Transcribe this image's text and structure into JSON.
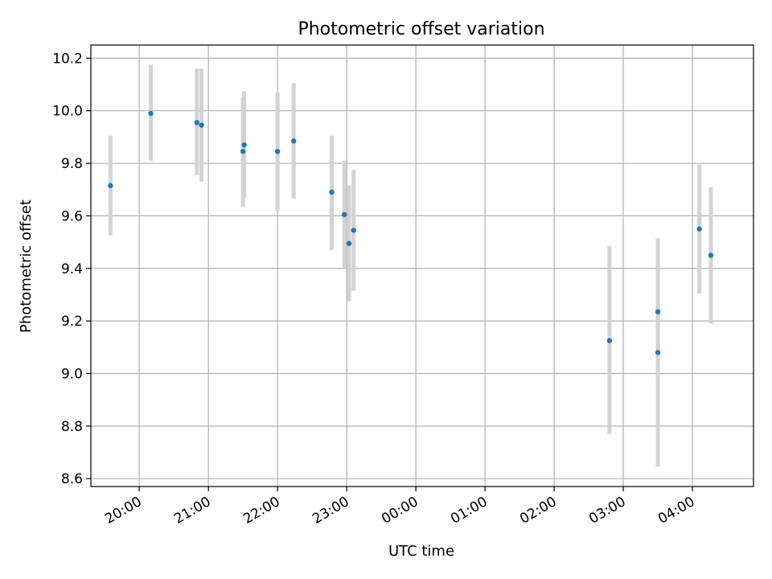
{
  "chart_data": {
    "type": "scatter",
    "title": "Photometric offset variation",
    "xlabel": "UTC time",
    "ylabel": "Photometric offset",
    "x_axis_kind": "time",
    "xlim": [
      "19:18",
      "04:53"
    ],
    "ylim": [
      8.57,
      10.25
    ],
    "grid": true,
    "x_ticks": [
      "20:00",
      "21:00",
      "22:00",
      "23:00",
      "00:00",
      "01:00",
      "02:00",
      "03:00",
      "04:00"
    ],
    "y_ticks": [
      "8.6",
      "8.8",
      "9.0",
      "9.2",
      "9.4",
      "9.6",
      "9.8",
      "10.0",
      "10.2"
    ],
    "colors": {
      "points": "#1f77b4",
      "errorbars": "#d3d3d3",
      "grid": "#b0b0b0",
      "frame": "#000000"
    },
    "series": [
      {
        "points": [
          {
            "time": "19:35",
            "y": 9.715,
            "err_low": 9.525,
            "err_high": 9.905
          },
          {
            "time": "20:10",
            "y": 9.99,
            "err_low": 9.81,
            "err_high": 10.175
          },
          {
            "time": "20:50",
            "y": 9.955,
            "err_low": 9.755,
            "err_high": 10.16
          },
          {
            "time": "20:54",
            "y": 9.945,
            "err_low": 9.73,
            "err_high": 10.16
          },
          {
            "time": "21:30",
            "y": 9.845,
            "err_low": 9.635,
            "err_high": 10.05
          },
          {
            "time": "21:31",
            "y": 9.87,
            "err_low": 9.665,
            "err_high": 10.075
          },
          {
            "time": "22:00",
            "y": 9.845,
            "err_low": 9.62,
            "err_high": 10.07
          },
          {
            "time": "22:14",
            "y": 9.885,
            "err_low": 9.665,
            "err_high": 10.105
          },
          {
            "time": "22:47",
            "y": 9.69,
            "err_low": 9.47,
            "err_high": 9.905
          },
          {
            "time": "22:58",
            "y": 9.605,
            "err_low": 9.4,
            "err_high": 9.81
          },
          {
            "time": "23:02",
            "y": 9.495,
            "err_low": 9.275,
            "err_high": 9.715
          },
          {
            "time": "23:06",
            "y": 9.545,
            "err_low": 9.315,
            "err_high": 9.775
          },
          {
            "time": "02:48",
            "y": 9.125,
            "err_low": 8.77,
            "err_high": 9.485
          },
          {
            "time": "03:30",
            "y": 9.235,
            "err_low": 8.955,
            "err_high": 9.515
          },
          {
            "time": "03:30",
            "y": 9.08,
            "err_low": 8.645,
            "err_high": 9.515
          },
          {
            "time": "04:06",
            "y": 9.55,
            "err_low": 9.305,
            "err_high": 9.795
          },
          {
            "time": "04:16",
            "y": 9.45,
            "err_low": 9.19,
            "err_high": 9.71
          }
        ]
      }
    ]
  }
}
